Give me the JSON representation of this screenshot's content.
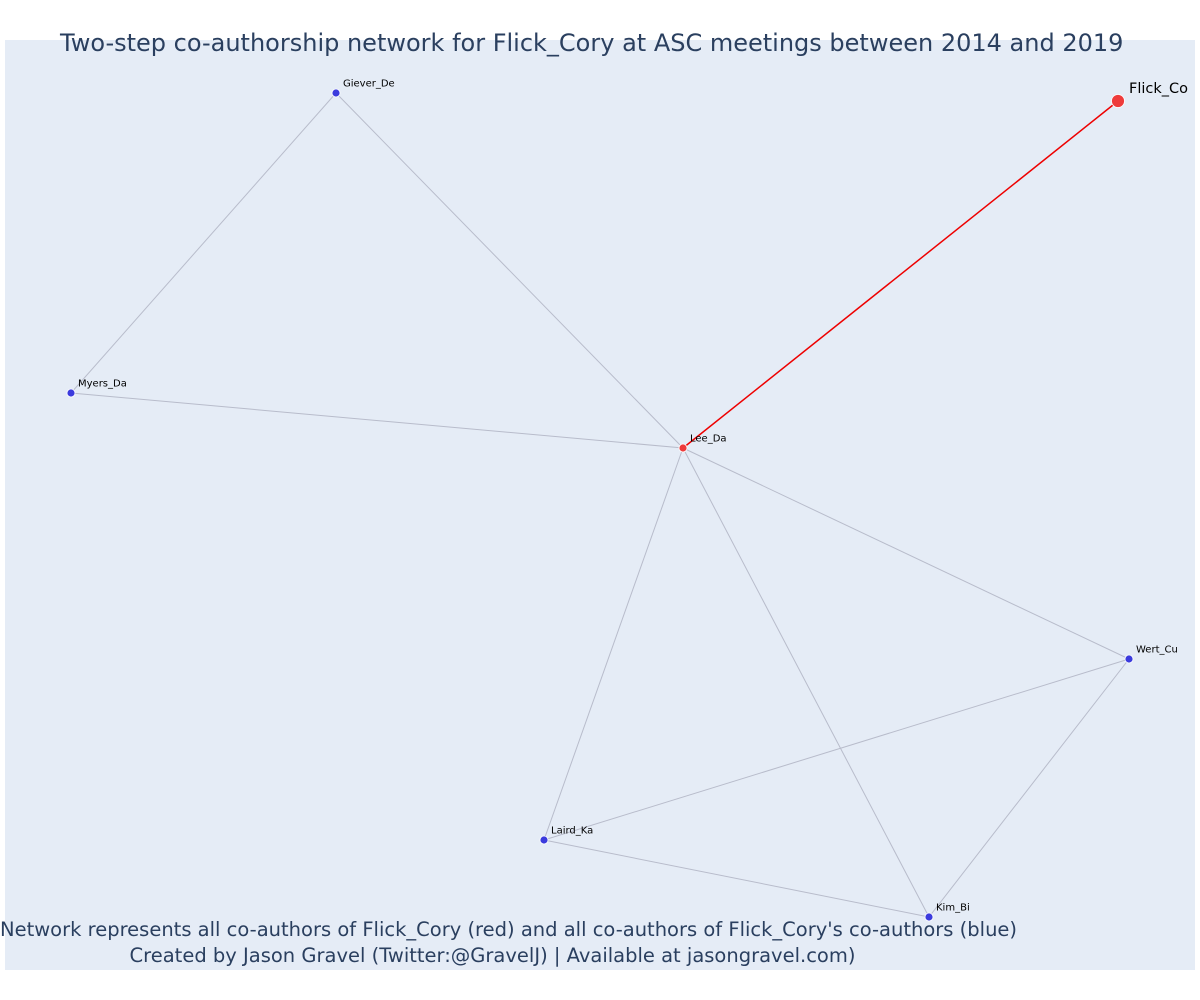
{
  "title": "Two-step co-authorship network for Flick_Cory at ASC meetings between 2014 and 2019",
  "caption_line1": "Network represents all co-authors of Flick_Cory (red) and all co-authors of Flick_Cory's co-authors (blue)",
  "caption_line2": "Created by Jason Gravel (Twitter:@GravelJ) | Available at jasongravel.com)",
  "colors": {
    "focal": "#ee3b3b",
    "coauthor": "#ee3b3b",
    "second_step": "#3b3bdd",
    "focal_edge": "#ee0000",
    "edge": "#b8bccb"
  },
  "nodes": [
    {
      "id": "Flick_Co",
      "label": "Flick_Co",
      "role": "focal"
    },
    {
      "id": "Lee_Da",
      "label": "Lee_Da",
      "role": "coauthor"
    },
    {
      "id": "Giever_De",
      "label": "Giever_De",
      "role": "second_step"
    },
    {
      "id": "Myers_Da",
      "label": "Myers_Da",
      "role": "second_step"
    },
    {
      "id": "Wert_Cu",
      "label": "Wert_Cu",
      "role": "second_step"
    },
    {
      "id": "Laird_Ka",
      "label": "Laird_Ka",
      "role": "second_step"
    },
    {
      "id": "Kim_Bi",
      "label": "Kim_Bi",
      "role": "second_step"
    }
  ],
  "edges": [
    {
      "source": "Flick_Co",
      "target": "Lee_Da",
      "focal": true
    },
    {
      "source": "Lee_Da",
      "target": "Giever_De"
    },
    {
      "source": "Lee_Da",
      "target": "Myers_Da"
    },
    {
      "source": "Lee_Da",
      "target": "Wert_Cu"
    },
    {
      "source": "Lee_Da",
      "target": "Laird_Ka"
    },
    {
      "source": "Lee_Da",
      "target": "Kim_Bi"
    },
    {
      "source": "Giever_De",
      "target": "Myers_Da"
    },
    {
      "source": "Wert_Cu",
      "target": "Laird_Ka"
    },
    {
      "source": "Wert_Cu",
      "target": "Kim_Bi"
    },
    {
      "source": "Laird_Ka",
      "target": "Kim_Bi"
    }
  ]
}
